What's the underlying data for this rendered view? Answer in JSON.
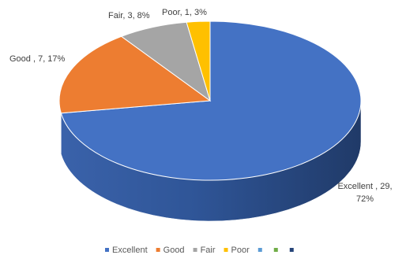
{
  "chart_data": {
    "type": "pie",
    "variant": "3d",
    "categories": [
      "Excellent",
      "Good",
      "Fair",
      "Poor"
    ],
    "values": [
      29,
      7,
      3,
      1
    ],
    "percents": [
      "72%",
      "17%",
      "8%",
      "3%"
    ],
    "data_labels": [
      [
        "Excellent , 29,",
        "72%"
      ],
      [
        "Good , 7, 17%"
      ],
      [
        "Fair, 3, 8%"
      ],
      [
        "Poor, 1, 3%"
      ]
    ],
    "colors": [
      "#4472C4",
      "#ED7D31",
      "#A5A5A5",
      "#FFC000"
    ],
    "legend": {
      "placement": "bottom",
      "entries": [
        {
          "label": "Excellent",
          "color": "#4472C4"
        },
        {
          "label": "Good",
          "color": "#ED7D31"
        },
        {
          "label": "Fair",
          "color": "#A5A5A5"
        },
        {
          "label": "Poor",
          "color": "#FFC000"
        },
        {
          "label": "",
          "color": "#5B9BD5"
        },
        {
          "label": "",
          "color": "#70AD47"
        },
        {
          "label": "",
          "color": "#264478"
        }
      ]
    }
  }
}
